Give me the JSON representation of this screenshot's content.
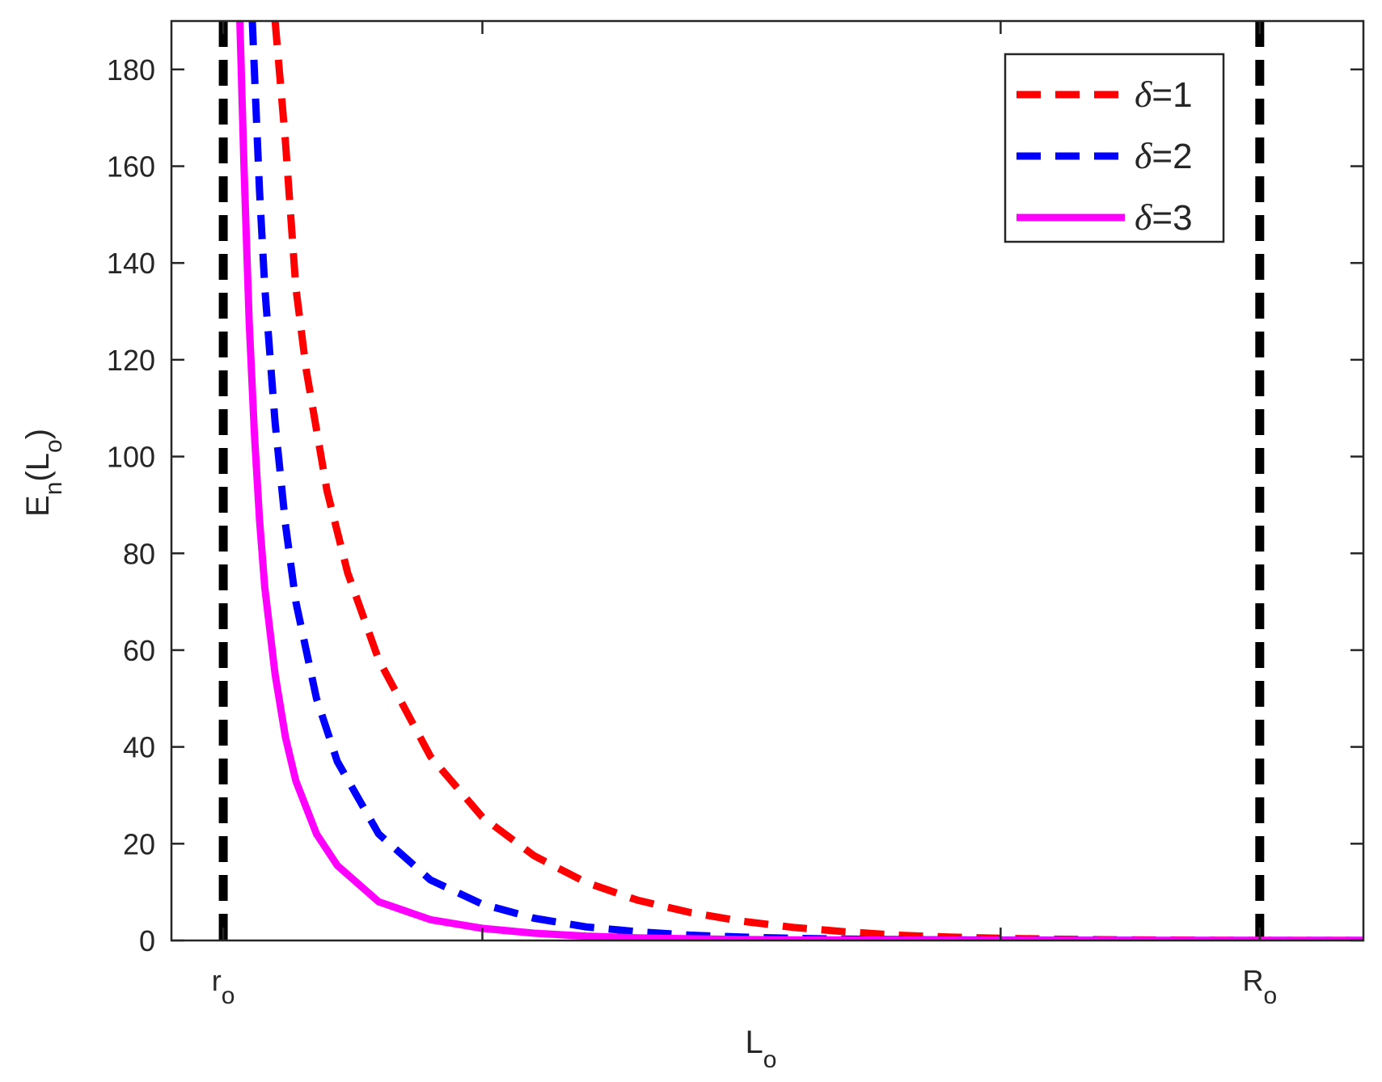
{
  "chart_data": {
    "type": "line",
    "title": "",
    "xlabel": {
      "main": "L",
      "sub": "o"
    },
    "ylabel": {
      "main": "E",
      "sub1": "n",
      "open": "(L",
      "sub2": "o",
      "close": ")"
    },
    "xlim": [
      0,
      1.15
    ],
    "ylim": [
      0,
      190
    ],
    "x_ticks": [
      {
        "value": 0.05,
        "main": "r",
        "sub": "o"
      },
      {
        "value": 1.05,
        "main": "R",
        "sub": "o"
      }
    ],
    "x_minor_ticks": [
      0.3,
      0.8
    ],
    "y_ticks": [
      0,
      20,
      40,
      60,
      80,
      100,
      120,
      140,
      160,
      180
    ],
    "y_tick_labels": [
      "0",
      "20",
      "40",
      "60",
      "80",
      "100",
      "120",
      "140",
      "160",
      "180"
    ],
    "vertical_reference_lines": [
      0.05,
      1.05
    ],
    "legend_position": "top-right",
    "grid": false,
    "series": [
      {
        "name": "δ=1",
        "name_symbol": "δ",
        "name_value": "=1",
        "color": "#ff0000",
        "style": "dashed",
        "x": [
          0.1,
          0.11,
          0.12,
          0.13,
          0.15,
          0.17,
          0.2,
          0.25,
          0.3,
          0.35,
          0.4,
          0.45,
          0.5,
          0.55,
          0.6,
          0.65,
          0.7,
          0.75,
          0.8,
          0.85,
          0.9,
          0.95,
          1.0,
          1.05,
          1.15
        ],
        "y": [
          190,
          165,
          135,
          118,
          93,
          76,
          58,
          38,
          25.5,
          17.5,
          12,
          8.3,
          5.8,
          4,
          2.7,
          1.8,
          1.1,
          0.7,
          0.45,
          0.28,
          0.17,
          0.1,
          0.05,
          0.02,
          0.01
        ]
      },
      {
        "name": "δ=2",
        "name_symbol": "δ",
        "name_value": "=2",
        "color": "#0000ff",
        "style": "dashed",
        "x": [
          0.078,
          0.08,
          0.085,
          0.09,
          0.1,
          0.11,
          0.12,
          0.14,
          0.16,
          0.2,
          0.25,
          0.3,
          0.35,
          0.4,
          0.45,
          0.5,
          0.55,
          0.6,
          0.65,
          0.7,
          0.8,
          0.9,
          1.15
        ],
        "y": [
          190,
          180,
          155,
          135,
          107,
          86,
          70,
          50,
          37,
          22,
          12.5,
          7.5,
          4.6,
          2.8,
          1.8,
          1.1,
          0.7,
          0.45,
          0.28,
          0.18,
          0.07,
          0.03,
          0.01
        ]
      },
      {
        "name": "δ=3",
        "name_symbol": "δ",
        "name_value": "=3",
        "color": "#ff00ff",
        "style": "solid",
        "x": [
          0.066,
          0.07,
          0.075,
          0.08,
          0.085,
          0.09,
          0.1,
          0.11,
          0.12,
          0.14,
          0.16,
          0.2,
          0.25,
          0.3,
          0.35,
          0.4,
          0.45,
          0.5,
          0.55,
          0.6,
          0.7,
          0.8,
          1.15
        ],
        "y": [
          190,
          160,
          128,
          105,
          87,
          73,
          55,
          42,
          33,
          22,
          15.5,
          8,
          4.3,
          2.5,
          1.5,
          0.9,
          0.55,
          0.35,
          0.22,
          0.14,
          0.06,
          0.03,
          0.01
        ]
      }
    ]
  }
}
